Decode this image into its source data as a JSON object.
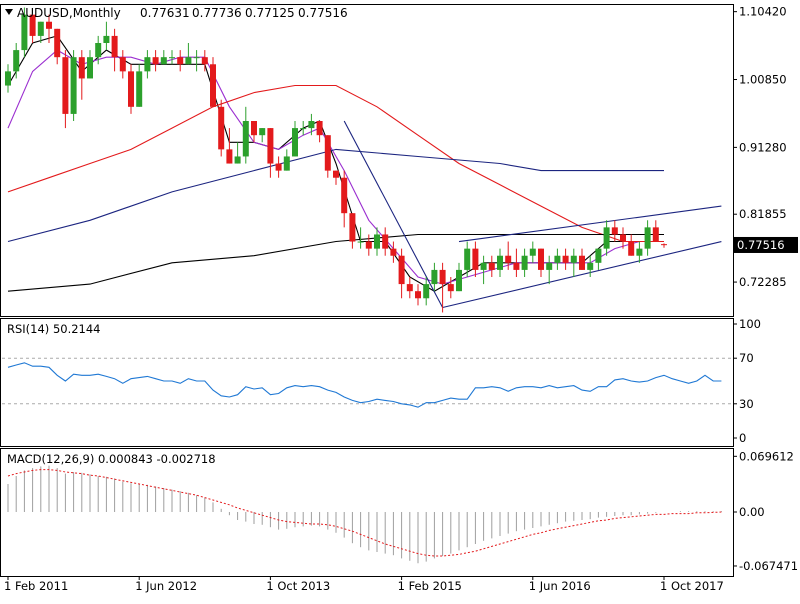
{
  "header": {
    "symbol_label": "AUDUSD,Monthly",
    "open": "0.77631",
    "high": "0.77736",
    "low": "0.77125",
    "close": "0.77516"
  },
  "colors": {
    "bull": "#2ca02c",
    "bear": "#e31a1c",
    "price_box": "#000000",
    "ma_fast": "#000000",
    "ma_purple": "#9b2fd0",
    "ma_red": "#e31a1c",
    "ma_navy": "#1c2580",
    "ma_black_slow": "#000000",
    "rsi_line": "#1f78d4",
    "macd_hist": "#9e9e9e",
    "macd_signal": "#e31a1c",
    "trendline": "#1c2580"
  },
  "chart_data": [
    {
      "type": "candlestick",
      "title": "AUDUSD,Monthly",
      "ohlc_label": "0.77631 0.77736 0.77125 0.77516",
      "current_price": "0.77516",
      "ylim": [
        0.675,
        1.115
      ],
      "ytick_labels": [
        "1.10420",
        "1.00850",
        "0.91280",
        "0.81855",
        "0.72285"
      ],
      "ytick_values": [
        1.1042,
        1.0085,
        0.9128,
        0.81855,
        0.72285
      ],
      "x_labels": [
        "1 Feb 2011",
        "1 Jun 2012",
        "1 Oct 2013",
        "1 Feb 2015",
        "1 Jun 2016",
        "1 Oct 2017"
      ],
      "x_label_index": [
        0,
        16,
        32,
        48,
        64,
        80
      ],
      "candles": [
        [
          1.0,
          1.03,
          0.99,
          1.02
        ],
        [
          1.02,
          1.06,
          1.01,
          1.05
        ],
        [
          1.05,
          1.11,
          1.04,
          1.1
        ],
        [
          1.1,
          1.1,
          1.06,
          1.07
        ],
        [
          1.07,
          1.09,
          1.06,
          1.09
        ],
        [
          1.09,
          1.1,
          1.06,
          1.08
        ],
        [
          1.08,
          1.08,
          1.03,
          1.04
        ],
        [
          1.04,
          1.05,
          0.94,
          0.96
        ],
        [
          0.96,
          1.05,
          0.95,
          1.04
        ],
        [
          1.04,
          1.05,
          0.98,
          1.01
        ],
        [
          1.01,
          1.05,
          1.01,
          1.04
        ],
        [
          1.04,
          1.07,
          1.03,
          1.06
        ],
        [
          1.06,
          1.09,
          1.05,
          1.07
        ],
        [
          1.07,
          1.08,
          1.02,
          1.04
        ],
        [
          1.04,
          1.05,
          1.01,
          1.02
        ],
        [
          1.02,
          1.03,
          0.96,
          0.97
        ],
        [
          0.97,
          1.03,
          0.97,
          1.02
        ],
        [
          1.02,
          1.05,
          1.01,
          1.04
        ],
        [
          1.04,
          1.05,
          1.02,
          1.03
        ],
        [
          1.03,
          1.05,
          1.03,
          1.04
        ],
        [
          1.04,
          1.05,
          1.03,
          1.04
        ],
        [
          1.04,
          1.05,
          1.02,
          1.03
        ],
        [
          1.03,
          1.06,
          1.03,
          1.04
        ],
        [
          1.04,
          1.05,
          1.02,
          1.04
        ],
        [
          1.04,
          1.05,
          1.02,
          1.03
        ],
        [
          1.03,
          1.04,
          0.97,
          0.97
        ],
        [
          0.97,
          0.98,
          0.9,
          0.91
        ],
        [
          0.91,
          0.94,
          0.89,
          0.89
        ],
        [
          0.89,
          0.92,
          0.89,
          0.9
        ],
        [
          0.9,
          0.97,
          0.89,
          0.95
        ],
        [
          0.95,
          0.95,
          0.92,
          0.93
        ],
        [
          0.93,
          0.94,
          0.92,
          0.94
        ],
        [
          0.94,
          0.94,
          0.87,
          0.89
        ],
        [
          0.89,
          0.9,
          0.87,
          0.88
        ],
        [
          0.88,
          0.91,
          0.88,
          0.9
        ],
        [
          0.9,
          0.95,
          0.9,
          0.94
        ],
        [
          0.94,
          0.95,
          0.93,
          0.94
        ],
        [
          0.94,
          0.96,
          0.93,
          0.95
        ],
        [
          0.95,
          0.95,
          0.92,
          0.93
        ],
        [
          0.93,
          0.93,
          0.87,
          0.88
        ],
        [
          0.88,
          0.88,
          0.86,
          0.87
        ],
        [
          0.87,
          0.88,
          0.8,
          0.82
        ],
        [
          0.82,
          0.82,
          0.77,
          0.78
        ],
        [
          0.78,
          0.8,
          0.77,
          0.78
        ],
        [
          0.78,
          0.79,
          0.76,
          0.77
        ],
        [
          0.77,
          0.8,
          0.76,
          0.79
        ],
        [
          0.79,
          0.8,
          0.76,
          0.77
        ],
        [
          0.77,
          0.78,
          0.75,
          0.76
        ],
        [
          0.76,
          0.77,
          0.7,
          0.72
        ],
        [
          0.72,
          0.73,
          0.7,
          0.71
        ],
        [
          0.71,
          0.72,
          0.69,
          0.7
        ],
        [
          0.7,
          0.73,
          0.69,
          0.72
        ],
        [
          0.72,
          0.75,
          0.71,
          0.74
        ],
        [
          0.74,
          0.75,
          0.68,
          0.72
        ],
        [
          0.72,
          0.73,
          0.7,
          0.71
        ],
        [
          0.71,
          0.75,
          0.71,
          0.74
        ],
        [
          0.74,
          0.78,
          0.73,
          0.77
        ],
        [
          0.77,
          0.78,
          0.73,
          0.74
        ],
        [
          0.74,
          0.76,
          0.72,
          0.75
        ],
        [
          0.75,
          0.76,
          0.73,
          0.74
        ],
        [
          0.74,
          0.77,
          0.73,
          0.76
        ],
        [
          0.76,
          0.78,
          0.74,
          0.75
        ],
        [
          0.75,
          0.77,
          0.73,
          0.74
        ],
        [
          0.74,
          0.77,
          0.73,
          0.76
        ],
        [
          0.76,
          0.78,
          0.75,
          0.77
        ],
        [
          0.77,
          0.77,
          0.73,
          0.74
        ],
        [
          0.74,
          0.76,
          0.72,
          0.75
        ],
        [
          0.75,
          0.77,
          0.74,
          0.76
        ],
        [
          0.76,
          0.77,
          0.74,
          0.75
        ],
        [
          0.75,
          0.77,
          0.73,
          0.76
        ],
        [
          0.76,
          0.77,
          0.74,
          0.74
        ],
        [
          0.74,
          0.76,
          0.73,
          0.75
        ],
        [
          0.75,
          0.77,
          0.74,
          0.77
        ],
        [
          0.77,
          0.81,
          0.76,
          0.8
        ],
        [
          0.8,
          0.81,
          0.78,
          0.79
        ],
        [
          0.79,
          0.8,
          0.77,
          0.78
        ],
        [
          0.78,
          0.79,
          0.76,
          0.76
        ],
        [
          0.76,
          0.78,
          0.75,
          0.77
        ],
        [
          0.77,
          0.81,
          0.76,
          0.8
        ],
        [
          0.8,
          0.81,
          0.78,
          0.78
        ],
        [
          0.77631,
          0.77736,
          0.77125,
          0.77516
        ]
      ],
      "moving_averages": [
        {
          "color_key": "ma_fast",
          "values": [
            [
              0,
              1.0
            ],
            [
              3,
              1.06
            ],
            [
              6,
              1.07
            ],
            [
              9,
              1.02
            ],
            [
              12,
              1.05
            ],
            [
              15,
              1.03
            ],
            [
              18,
              1.03
            ],
            [
              21,
              1.03
            ],
            [
              24,
              1.03
            ],
            [
              27,
              0.92
            ],
            [
              30,
              0.92
            ],
            [
              33,
              0.91
            ],
            [
              36,
              0.94
            ],
            [
              38,
              0.95
            ],
            [
              40,
              0.89
            ],
            [
              43,
              0.78
            ],
            [
              46,
              0.78
            ],
            [
              49,
              0.73
            ],
            [
              52,
              0.71
            ],
            [
              55,
              0.73
            ],
            [
              58,
              0.75
            ],
            [
              61,
              0.75
            ],
            [
              64,
              0.75
            ],
            [
              67,
              0.75
            ],
            [
              70,
              0.75
            ],
            [
              73,
              0.78
            ],
            [
              76,
              0.78
            ],
            [
              78,
              0.78
            ],
            [
              80,
              0.78
            ]
          ]
        },
        {
          "color_key": "ma_purple",
          "values": [
            [
              0,
              0.94
            ],
            [
              3,
              1.02
            ],
            [
              6,
              1.05
            ],
            [
              9,
              1.03
            ],
            [
              12,
              1.04
            ],
            [
              15,
              1.04
            ],
            [
              18,
              1.03
            ],
            [
              21,
              1.04
            ],
            [
              24,
              1.04
            ],
            [
              27,
              0.97
            ],
            [
              30,
              0.92
            ],
            [
              33,
              0.91
            ],
            [
              36,
              0.93
            ],
            [
              38,
              0.94
            ],
            [
              41,
              0.88
            ],
            [
              44,
              0.81
            ],
            [
              47,
              0.77
            ],
            [
              50,
              0.73
            ],
            [
              53,
              0.72
            ],
            [
              56,
              0.73
            ],
            [
              59,
              0.74
            ],
            [
              62,
              0.75
            ],
            [
              65,
              0.75
            ],
            [
              68,
              0.75
            ],
            [
              71,
              0.75
            ],
            [
              74,
              0.77
            ],
            [
              77,
              0.78
            ],
            [
              80,
              0.78
            ]
          ]
        },
        {
          "color_key": "ma_red",
          "values": [
            [
              0,
              0.85
            ],
            [
              5,
              0.87
            ],
            [
              10,
              0.89
            ],
            [
              15,
              0.91
            ],
            [
              20,
              0.94
            ],
            [
              25,
              0.97
            ],
            [
              30,
              0.99
            ],
            [
              35,
              1.0
            ],
            [
              40,
              1.0
            ],
            [
              45,
              0.97
            ],
            [
              50,
              0.93
            ],
            [
              55,
              0.89
            ],
            [
              60,
              0.86
            ],
            [
              65,
              0.83
            ],
            [
              70,
              0.8
            ],
            [
              75,
              0.78
            ],
            [
              80,
              0.78
            ]
          ]
        },
        {
          "color_key": "ma_navy",
          "values": [
            [
              0,
              0.78
            ],
            [
              10,
              0.81
            ],
            [
              20,
              0.85
            ],
            [
              30,
              0.88
            ],
            [
              40,
              0.91
            ],
            [
              50,
              0.9
            ],
            [
              60,
              0.89
            ],
            [
              65,
              0.88
            ],
            [
              70,
              0.88
            ],
            [
              75,
              0.88
            ],
            [
              80,
              0.88
            ]
          ]
        },
        {
          "color_key": "ma_black_slow",
          "values": [
            [
              0,
              0.71
            ],
            [
              10,
              0.72
            ],
            [
              20,
              0.75
            ],
            [
              30,
              0.76
            ],
            [
              40,
              0.78
            ],
            [
              50,
              0.79
            ],
            [
              60,
              0.79
            ],
            [
              70,
              0.79
            ],
            [
              80,
              0.79
            ]
          ]
        }
      ],
      "trendlines": [
        {
          "color_key": "trendline",
          "points": [
            [
              41,
              0.95
            ],
            [
              53,
              0.687
            ]
          ]
        },
        {
          "color_key": "trendline",
          "points": [
            [
              53,
              0.687
            ],
            [
              87,
              0.78
            ]
          ]
        },
        {
          "color_key": "trendline",
          "points": [
            [
              55,
              0.78
            ],
            [
              87,
              0.83
            ]
          ]
        }
      ]
    },
    {
      "type": "line",
      "title": "RSI(14) 50.2144",
      "ylim": [
        0,
        100
      ],
      "ytick_labels": [
        "100",
        "70",
        "30",
        "0"
      ],
      "ytick_values": [
        100,
        70,
        30,
        0
      ],
      "levels": [
        70,
        30
      ],
      "values": [
        62,
        64,
        66,
        63,
        63,
        62,
        55,
        50,
        56,
        55,
        55,
        56,
        54,
        52,
        48,
        52,
        53,
        54,
        52,
        50,
        50,
        48,
        52,
        50,
        50,
        42,
        37,
        36,
        38,
        45,
        43,
        44,
        38,
        39,
        44,
        46,
        45,
        46,
        45,
        42,
        40,
        36,
        33,
        31,
        32,
        34,
        33,
        32,
        30,
        29,
        27,
        31,
        31,
        33,
        35,
        34,
        34,
        44,
        44,
        45,
        44,
        41,
        44,
        45,
        45,
        44,
        46,
        44,
        45,
        46,
        42,
        41,
        45,
        45,
        51,
        52,
        50,
        49,
        50,
        53,
        55,
        52,
        50,
        48,
        50,
        55,
        50,
        50
      ]
    },
    {
      "type": "bar+line",
      "title": "MACD(12,26,9) 0.000843 -0.002718",
      "ylim": [
        -0.075,
        0.075
      ],
      "ytick_labels": [
        "0.069612",
        "0.00",
        "-0.067471"
      ],
      "ytick_values": [
        0.069612,
        0.0,
        -0.067471
      ],
      "histogram": [
        0.035,
        0.045,
        0.052,
        0.055,
        0.057,
        0.058,
        0.055,
        0.048,
        0.05,
        0.049,
        0.047,
        0.045,
        0.044,
        0.042,
        0.038,
        0.036,
        0.035,
        0.034,
        0.032,
        0.03,
        0.028,
        0.026,
        0.024,
        0.021,
        0.018,
        0.012,
        0.004,
        -0.004,
        -0.01,
        -0.012,
        -0.015,
        -0.016,
        -0.019,
        -0.022,
        -0.021,
        -0.019,
        -0.018,
        -0.017,
        -0.018,
        -0.022,
        -0.026,
        -0.032,
        -0.039,
        -0.044,
        -0.048,
        -0.05,
        -0.052,
        -0.054,
        -0.058,
        -0.061,
        -0.064,
        -0.062,
        -0.058,
        -0.055,
        -0.052,
        -0.048,
        -0.044,
        -0.04,
        -0.036,
        -0.033,
        -0.03,
        -0.027,
        -0.024,
        -0.022,
        -0.02,
        -0.018,
        -0.016,
        -0.014,
        -0.012,
        -0.011,
        -0.01,
        -0.009,
        -0.007,
        -0.006,
        -0.005,
        -0.004,
        -0.004,
        -0.003,
        -0.002,
        -0.001,
        0.0,
        0.0,
        0.001,
        0.001,
        0.001,
        0.001,
        0.001,
        0.001
      ],
      "signal": [
        0.045,
        0.048,
        0.05,
        0.052,
        0.053,
        0.053,
        0.052,
        0.05,
        0.049,
        0.048,
        0.046,
        0.045,
        0.043,
        0.041,
        0.039,
        0.037,
        0.035,
        0.033,
        0.031,
        0.029,
        0.027,
        0.025,
        0.023,
        0.021,
        0.018,
        0.015,
        0.012,
        0.009,
        0.005,
        0.002,
        -0.001,
        -0.004,
        -0.007,
        -0.01,
        -0.012,
        -0.013,
        -0.014,
        -0.015,
        -0.015,
        -0.016,
        -0.018,
        -0.021,
        -0.024,
        -0.028,
        -0.032,
        -0.036,
        -0.04,
        -0.043,
        -0.046,
        -0.049,
        -0.052,
        -0.054,
        -0.055,
        -0.055,
        -0.054,
        -0.053,
        -0.051,
        -0.049,
        -0.046,
        -0.043,
        -0.04,
        -0.037,
        -0.034,
        -0.031,
        -0.028,
        -0.026,
        -0.023,
        -0.021,
        -0.019,
        -0.017,
        -0.015,
        -0.013,
        -0.011,
        -0.01,
        -0.008,
        -0.007,
        -0.006,
        -0.005,
        -0.004,
        -0.003,
        -0.003,
        -0.002,
        -0.002,
        -0.002,
        -0.001,
        -0.001,
        -0.0005,
        0.0
      ]
    }
  ]
}
